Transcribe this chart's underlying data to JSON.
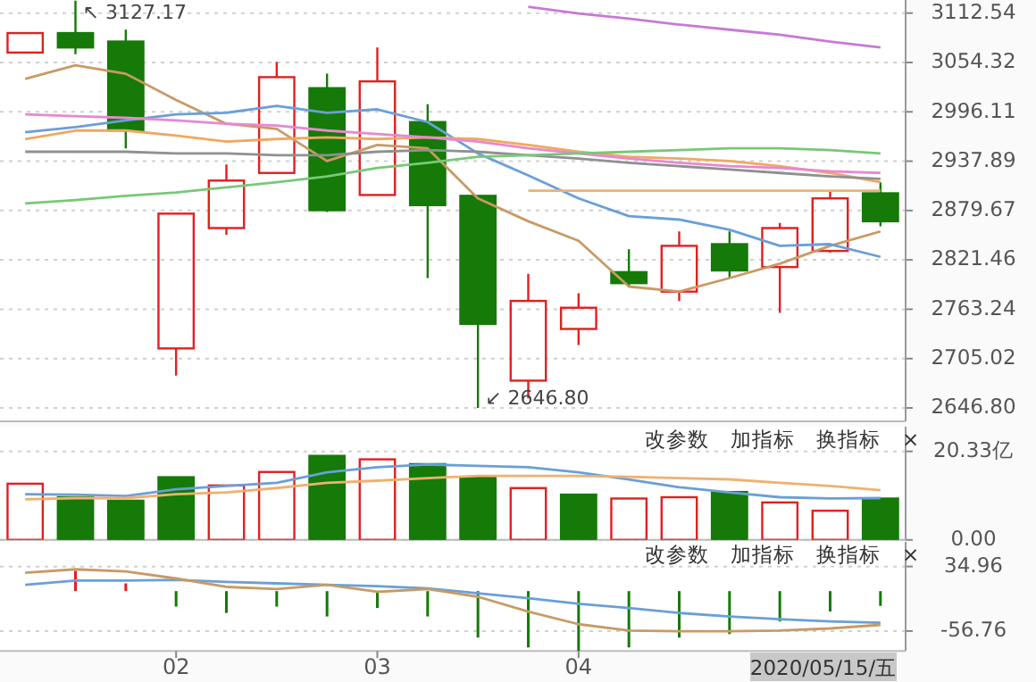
{
  "chart_data": [
    {
      "type": "candlestick",
      "categories": [
        null,
        null,
        null,
        null,
        null,
        null,
        null,
        null,
        null,
        null,
        null,
        null,
        null,
        null,
        null,
        null,
        null,
        null
      ],
      "ohlc": [
        [
          3066,
          3089,
          3066,
          3089
        ],
        [
          3089,
          3127.17,
          3064,
          3072
        ],
        [
          3079,
          3093,
          2953,
          2974
        ],
        [
          2717,
          2876,
          2685,
          2876
        ],
        [
          2859,
          2934,
          2851,
          2915
        ],
        [
          2924,
          3055,
          2924,
          3037
        ],
        [
          3024,
          3041,
          2878,
          2880
        ],
        [
          2898,
          3072,
          2898,
          3032
        ],
        [
          2984,
          3005,
          2800,
          2886
        ],
        [
          2897,
          2897,
          2646.8,
          2746
        ],
        [
          2679,
          2805,
          2658,
          2773
        ],
        [
          2740,
          2782,
          2721,
          2765
        ],
        [
          2807,
          2834,
          2790,
          2794
        ],
        [
          2784,
          2855,
          2773,
          2838
        ],
        [
          2840,
          2855,
          2800,
          2809
        ],
        [
          2813,
          2865,
          2759,
          2859
        ],
        [
          2832,
          2902,
          2830,
          2894
        ],
        [
          2900,
          2913,
          2861,
          2867
        ]
      ],
      "colors": [
        "#e02020",
        "#157a08",
        "#157a08",
        "#e02020",
        "#e02020",
        "#e02020",
        "#157a08",
        "#e02020",
        "#157a08",
        "#157a08",
        "#e02020",
        "#e02020",
        "#157a08",
        "#e02020",
        "#157a08",
        "#e02020",
        "#e02020",
        "#157a08"
      ],
      "series": [
        {
          "type": "line",
          "color": "#c89a64",
          "values": [
            3035,
            3051,
            3041,
            3010,
            2982,
            2976,
            2938,
            2957,
            2953,
            2894,
            2867,
            2844,
            2790,
            2784,
            2800,
            2817,
            2838,
            2855
          ]
        },
        {
          "type": "line",
          "color": "#6a9fd8",
          "values": [
            2972,
            2978,
            2986,
            2993,
            2995,
            3003,
            2995,
            2999,
            2984,
            2947,
            2921,
            2894,
            2873,
            2869,
            2857,
            2838,
            2840,
            2825
          ]
        },
        {
          "type": "line",
          "color": "#f0a860",
          "values": [
            2964,
            2974,
            2974,
            2968,
            2961,
            2964,
            2966,
            2964,
            2966,
            2964,
            2957,
            2949,
            2943,
            2941,
            2938,
            2932,
            2924,
            2913
          ]
        },
        {
          "type": "line",
          "color": "#e888d0",
          "values": [
            2993,
            2991,
            2989,
            2986,
            2982,
            2980,
            2974,
            2970,
            2966,
            2961,
            2953,
            2947,
            2941,
            2936,
            2932,
            2930,
            2926,
            2924
          ]
        },
        {
          "type": "line",
          "color": "#909090",
          "values": [
            2949,
            2949,
            2949,
            2947,
            2947,
            2945,
            2945,
            2949,
            2951,
            2949,
            2945,
            2941,
            2936,
            2932,
            2928,
            2924,
            2920,
            2917
          ]
        },
        {
          "type": "line",
          "color": "#78c878",
          "values": [
            2888,
            2892,
            2897,
            2901,
            2907,
            2913,
            2920,
            2930,
            2936,
            2943,
            2945,
            2947,
            2949,
            2951,
            2953,
            2953,
            2951,
            2947
          ]
        },
        {
          "type": "line",
          "color": "#f0b070",
          "values": [
            null,
            null,
            null,
            null,
            null,
            null,
            null,
            null,
            null,
            null,
            2903,
            2903,
            2903,
            2903,
            2903,
            2903,
            2903,
            2903
          ]
        },
        {
          "type": "line",
          "color": "#c878d8",
          "values": [
            null,
            null,
            null,
            null,
            null,
            null,
            null,
            null,
            null,
            null,
            3120,
            3112,
            3106,
            3099,
            3093,
            3087,
            3079,
            3072
          ]
        }
      ],
      "ylim": [
        2631,
        3128
      ],
      "yticks": [
        {
          "value": 2646.8,
          "label": "2646.80"
        },
        2705.02,
        2763.24,
        2821.46,
        2879.67,
        2937.89,
        2996.11,
        3054.32,
        3112.54
      ],
      "grid": "y",
      "tick_labels": "y",
      "annotations": [
        "↖ 3127.17",
        "↙ 2646.80"
      ]
    },
    {
      "type": "bar",
      "categories": [
        null,
        null,
        null,
        null,
        null,
        null,
        null,
        null,
        null,
        null,
        null,
        null,
        null,
        null,
        null,
        null,
        null,
        null
      ],
      "series": [
        {
          "type": "bar",
          "values": [
            12.9,
            9.8,
            9.0,
            14.4,
            12.5,
            15.6,
            19.3,
            18.5,
            17.4,
            14.4,
            11.9,
            10.4,
            9.5,
            9.8,
            11.0,
            8.6,
            6.7,
            9.5
          ],
          "colors": [
            "#e02020",
            "#157a08",
            "#157a08",
            "#157a08",
            "#e02020",
            "#e02020",
            "#157a08",
            "#e02020",
            "#157a08",
            "#157a08",
            "#e02020",
            "#157a08",
            "#e02020",
            "#e02020",
            "#157a08",
            "#e02020",
            "#e02020",
            "#157a08"
          ]
        },
        {
          "type": "line",
          "color": "#6a9fd8",
          "values": [
            10.5,
            10.4,
            10.1,
            11.6,
            12.4,
            13.1,
            15.5,
            16.7,
            17.3,
            17.0,
            16.7,
            15.5,
            13.9,
            12.1,
            10.9,
            9.8,
            9.5,
            9.6
          ]
        },
        {
          "type": "line",
          "color": "#f0b070",
          "values": [
            9.3,
            9.6,
            9.6,
            10.5,
            10.9,
            11.9,
            13.1,
            13.6,
            14.2,
            14.7,
            14.7,
            14.7,
            14.5,
            14.2,
            13.9,
            13.1,
            12.4,
            11.4
          ]
        }
      ],
      "ylim": [
        0,
        26
      ],
      "yticks": [
        {
          "value": 20.33,
          "label": "20.33亿"
        },
        {
          "value": 0,
          "label": "0.00"
        }
      ],
      "grid": "y",
      "tick_labels": "y",
      "annotations": [
        "改参数",
        "加指标",
        "换指标",
        "×"
      ]
    },
    {
      "type": "bar",
      "categories": [
        null,
        null,
        null,
        "02",
        null,
        null,
        null,
        "03",
        null,
        null,
        null,
        "04",
        null,
        null,
        null,
        null,
        null,
        null
      ],
      "series": [
        {
          "type": "bar",
          "values": [
            null,
            29,
            11,
            -22,
            -31,
            -22,
            -36,
            -24,
            -36,
            -66,
            -80,
            -85,
            -80,
            -66,
            -61,
            -43,
            -29,
            -21
          ],
          "colors": [
            "#e02020",
            "#e02020",
            "#e02020",
            "#157a08",
            "#157a08",
            "#157a08",
            "#157a08",
            "#157a08",
            "#157a08",
            "#157a08",
            "#157a08",
            "#157a08",
            "#157a08",
            "#157a08",
            "#157a08",
            "#157a08",
            "#157a08",
            "#157a08"
          ]
        },
        {
          "type": "line",
          "color": "#6a9fd8",
          "values": [
            9,
            15,
            15,
            16,
            13,
            11,
            9,
            7,
            4,
            -3,
            -10,
            -18,
            -24,
            -31,
            -36,
            -40,
            -43,
            -45
          ]
        },
        {
          "type": "line",
          "color": "#c89a64",
          "values": [
            26,
            31,
            28,
            18,
            6,
            3,
            9,
            -1,
            3,
            -8,
            -29,
            -47,
            -56,
            -57,
            -57,
            -56,
            -53,
            -48
          ]
        }
      ],
      "ylim": [
        -85,
        70
      ],
      "yticks": [
        34.96,
        -56.76
      ],
      "grid": "y",
      "annotations": [
        "改参数",
        "加指标",
        "换指标",
        "×",
        "2020/05/15/五"
      ]
    }
  ]
}
